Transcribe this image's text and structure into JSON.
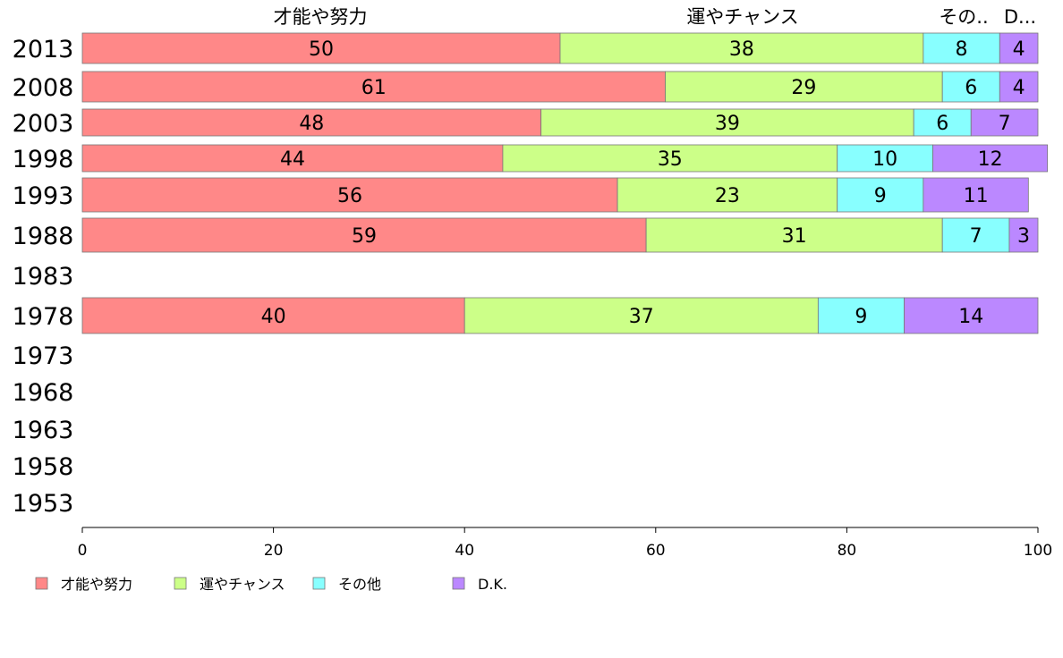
{
  "chart_data": {
    "type": "bar",
    "orientation": "horizontal",
    "stacked": true,
    "categories": [
      "2013",
      "2008",
      "2003",
      "1998",
      "1993",
      "1988",
      "1983",
      "1978",
      "1973",
      "1968",
      "1963",
      "1958",
      "1953"
    ],
    "series": [
      {
        "name": "才能や努力",
        "color": "#ff8888",
        "values": [
          50,
          61,
          48,
          44,
          56,
          59,
          null,
          40,
          null,
          null,
          null,
          null,
          null
        ]
      },
      {
        "name": "運やチャンス",
        "color": "#ccff88",
        "values": [
          38,
          29,
          39,
          35,
          23,
          31,
          null,
          37,
          null,
          null,
          null,
          null,
          null
        ]
      },
      {
        "name": "その他",
        "color": "#88ffff",
        "values": [
          8,
          6,
          6,
          10,
          9,
          7,
          null,
          9,
          null,
          null,
          null,
          null,
          null
        ]
      },
      {
        "name": "D.K.",
        "color": "#bb88ff",
        "values": [
          4,
          4,
          7,
          12,
          11,
          3,
          null,
          14,
          null,
          null,
          null,
          null,
          null
        ]
      }
    ],
    "top_labels": [
      "才能や努力",
      "運やチャンス",
      "その..",
      "D..."
    ],
    "xlim": [
      0,
      100
    ],
    "xticks": [
      0,
      20,
      40,
      60,
      80,
      100
    ],
    "grid": false,
    "legend_position": "bottom-left"
  }
}
